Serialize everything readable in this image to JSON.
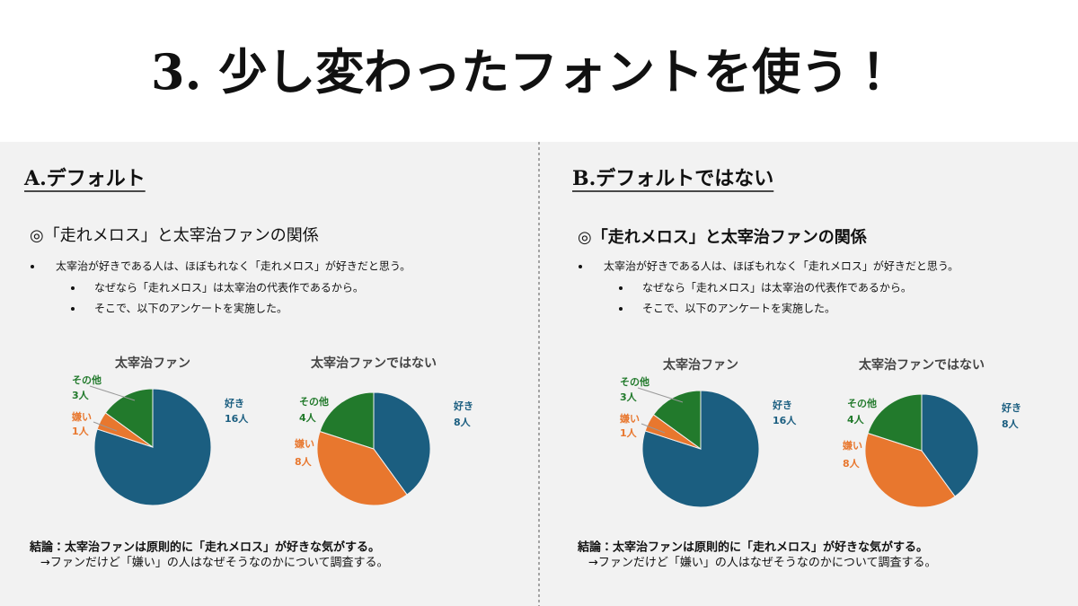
{
  "title": "3. 少し変わったフォントを使う！",
  "panels": [
    {
      "heading": "A.デフォルト",
      "subheading": "◎「走れメロス」と太宰治ファンの関係",
      "bullets": [
        "太宰治が好きである人は、ほぼもれなく「走れメロス」が好きだと思う。"
      ],
      "sub_bullets": [
        "なぜなら「走れメロス」は太宰治の代表作であるから。",
        "そこで、以下のアンケートを実施した。"
      ],
      "charts": [
        {
          "type": "pie",
          "title": "太宰治ファン",
          "categories": [
            "好き",
            "嫌い",
            "その他"
          ],
          "values": [
            16,
            1,
            3
          ],
          "value_labels": [
            "16人",
            "1人",
            "3人"
          ],
          "colors": [
            "#1b5e80",
            "#e8772e",
            "#227a2c"
          ]
        },
        {
          "type": "pie",
          "title": "太宰治ファンではない",
          "categories": [
            "好き",
            "嫌い",
            "その他"
          ],
          "values": [
            8,
            8,
            4
          ],
          "value_labels": [
            "8人",
            "8人",
            "4人"
          ],
          "colors": [
            "#1b5e80",
            "#e8772e",
            "#227a2c"
          ]
        }
      ],
      "conclusion": [
        "結論：太宰治ファンは原則的に「走れメロス」が好きな気がする。",
        "→ファンだけど「嫌い」の人はなぜそうなのかについて調査する。"
      ]
    },
    {
      "heading": "B.デフォルトではない",
      "subheading": "◎「走れメロス」と太宰治ファンの関係",
      "bullets": [
        "太宰治が好きである人は、ほぼもれなく「走れメロス」が好きだと思う。"
      ],
      "sub_bullets": [
        "なぜなら「走れメロス」は太宰治の代表作であるから。",
        "そこで、以下のアンケートを実施した。"
      ],
      "charts": [
        {
          "type": "pie",
          "title": "太宰治ファン",
          "categories": [
            "好き",
            "嫌い",
            "その他"
          ],
          "values": [
            16,
            1,
            3
          ],
          "value_labels": [
            "16人",
            "1人",
            "3人"
          ],
          "colors": [
            "#1b5e80",
            "#e8772e",
            "#227a2c"
          ]
        },
        {
          "type": "pie",
          "title": "太宰治ファンではない",
          "categories": [
            "好き",
            "嫌い",
            "その他"
          ],
          "values": [
            8,
            8,
            4
          ],
          "value_labels": [
            "8人",
            "8人",
            "4人"
          ],
          "colors": [
            "#1b5e80",
            "#e8772e",
            "#227a2c"
          ]
        }
      ],
      "conclusion": [
        "結論：太宰治ファンは原則的に「走れメロス」が好きな気がする。",
        "→ファンだけど「嫌い」の人はなぜそうなのかについて調査する。"
      ]
    }
  ]
}
